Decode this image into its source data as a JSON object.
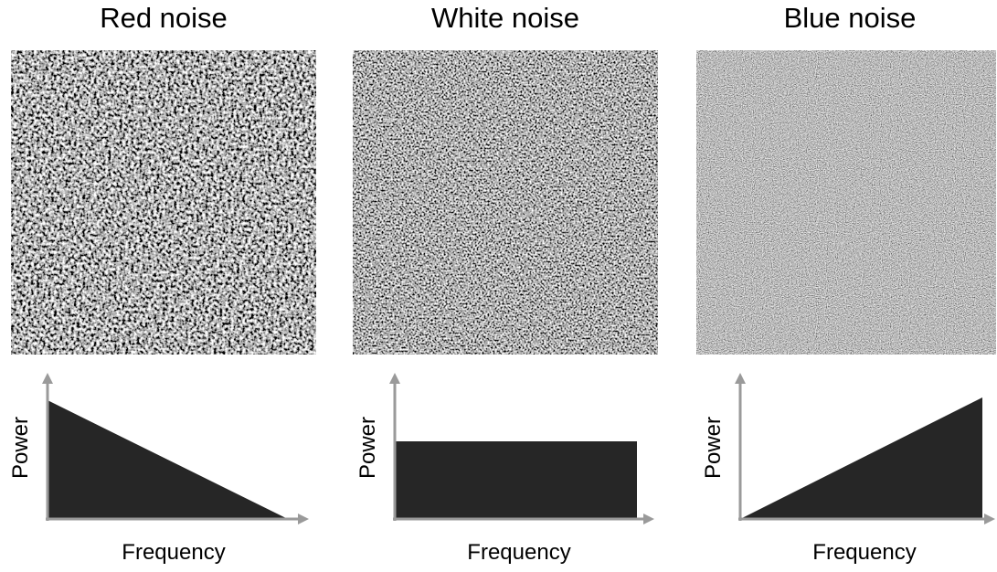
{
  "panels": [
    {
      "title": "Red noise",
      "y_label": "Power",
      "x_label": "Frequency"
    },
    {
      "title": "White noise",
      "y_label": "Power",
      "x_label": "Frequency"
    },
    {
      "title": "Blue noise",
      "y_label": "Power",
      "x_label": "Frequency"
    }
  ]
}
